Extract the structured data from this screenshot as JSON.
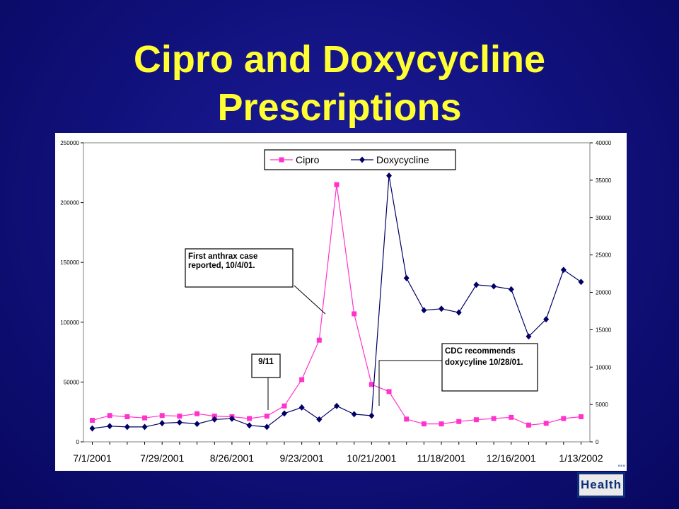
{
  "slide": {
    "title_line1": "Cipro and Doxycycline",
    "title_line2": "Prescriptions"
  },
  "colors": {
    "background": "#10107a",
    "title": "#ffff33",
    "cipro": "#ff33cc",
    "doxycycline": "#000066",
    "logo": "#0d2f7a"
  },
  "logo": {
    "text": "Health",
    "icon": "nyc-health-logo"
  },
  "chart_data": {
    "type": "line",
    "title": "",
    "xlabel": "",
    "ylabel": "",
    "x_tick_labels": [
      "7/1/2001",
      "7/29/2001",
      "8/26/2001",
      "9/23/2001",
      "10/21/2001",
      "11/18/2001",
      "12/16/2001",
      "1/13/2002"
    ],
    "x": [
      "7/1/2001",
      "7/8/2001",
      "7/15/2001",
      "7/22/2001",
      "7/29/2001",
      "8/5/2001",
      "8/12/2001",
      "8/19/2001",
      "8/26/2001",
      "9/2/2001",
      "9/9/2001",
      "9/16/2001",
      "9/23/2001",
      "9/30/2001",
      "10/7/2001",
      "10/14/2001",
      "10/21/2001",
      "10/28/2001",
      "11/4/2001",
      "11/11/2001",
      "11/18/2001",
      "11/25/2001",
      "12/2/2001",
      "12/9/2001",
      "12/16/2001",
      "12/23/2001",
      "12/30/2001",
      "1/6/2002",
      "1/13/2002"
    ],
    "ylim_left": [
      0,
      250000
    ],
    "ylim_right": [
      0,
      40000
    ],
    "y_left_ticks": [
      "0",
      "50000",
      "100000",
      "150000",
      "200000",
      "250000"
    ],
    "y_right_ticks": [
      "0",
      "5000",
      "10000",
      "15000",
      "20000",
      "25000",
      "30000",
      "35000",
      "40000"
    ],
    "grid": false,
    "legend_position": "top-center",
    "series": [
      {
        "name": "Cipro",
        "axis": "left",
        "marker": "square",
        "values": [
          18000,
          22000,
          21000,
          20000,
          22000,
          21500,
          23500,
          21500,
          21000,
          19500,
          21500,
          30000,
          52000,
          85000,
          215000,
          107000,
          48000,
          42000,
          19000,
          15000,
          15000,
          17000,
          18500,
          19500,
          20500,
          14000,
          15500,
          19500,
          21000
        ]
      },
      {
        "name": "Doxycycline",
        "axis": "right",
        "marker": "diamond",
        "values": [
          1800,
          2100,
          2000,
          2000,
          2500,
          2600,
          2400,
          3000,
          3100,
          2200,
          2000,
          3800,
          4600,
          3000,
          4800,
          3700,
          3500,
          35600,
          21900,
          17600,
          17800,
          17300,
          21000,
          20800,
          20400,
          14100,
          16400,
          23000,
          21400
        ]
      }
    ],
    "annotations": [
      {
        "id": "anthrax",
        "lines": [
          "First anthrax case",
          "reported, 10/4/01."
        ]
      },
      {
        "id": "nine-eleven",
        "lines": [
          "9/11"
        ]
      },
      {
        "id": "cdc",
        "lines": [
          "CDC recommends",
          "doxycyline 10/28/01."
        ]
      }
    ]
  }
}
